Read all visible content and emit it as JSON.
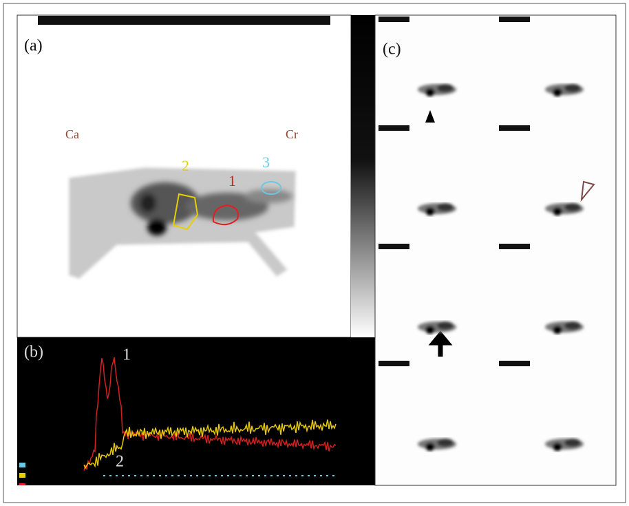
{
  "panels": {
    "a": {
      "label": "(a)",
      "caudal": "Ca",
      "cranial": "Cr",
      "roi_labels": [
        "1",
        "2",
        "3"
      ]
    },
    "b": {
      "label": "(b)",
      "curve_labels": [
        "1",
        "2"
      ]
    },
    "c": {
      "label": "(c)"
    }
  }
}
